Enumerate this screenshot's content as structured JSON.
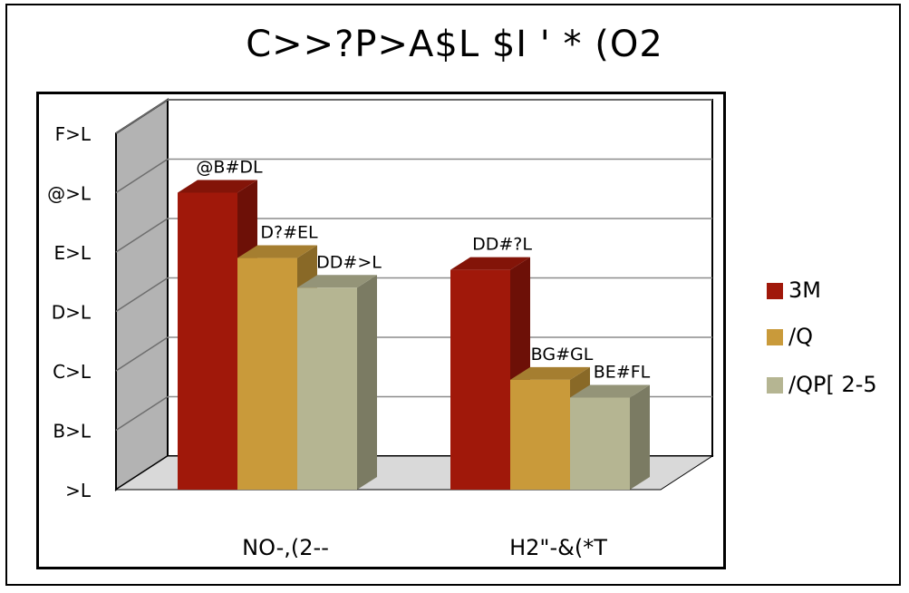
{
  "chart_data": {
    "type": "bar",
    "title": "C>>?P>A$L $I ' * (O2",
    "categories": [
      "NO-,(2--",
      "H2\"-&(*T"
    ],
    "y_ticks": [
      ">L",
      "B>L",
      "C>L",
      "D>L",
      "E>L",
      "@>L",
      "F>L"
    ],
    "ylim": [
      0,
      6
    ],
    "series": [
      {
        "name": "3M",
        "color": "#a0180a",
        "values": [
          5.0,
          3.7
        ],
        "labels": [
          "@B#DL",
          "DD#?L"
        ]
      },
      {
        "name": "/Q",
        "color": "#c99a3a",
        "values": [
          3.9,
          1.85
        ],
        "labels": [
          "D?#EL",
          "BG#GL"
        ]
      },
      {
        "name": "/QP[ 2-5",
        "color": "#b5b592",
        "values": [
          3.4,
          1.55
        ],
        "labels": [
          "DD#>L",
          "BE#FL"
        ]
      }
    ],
    "grid": true,
    "legend_position": "right"
  }
}
